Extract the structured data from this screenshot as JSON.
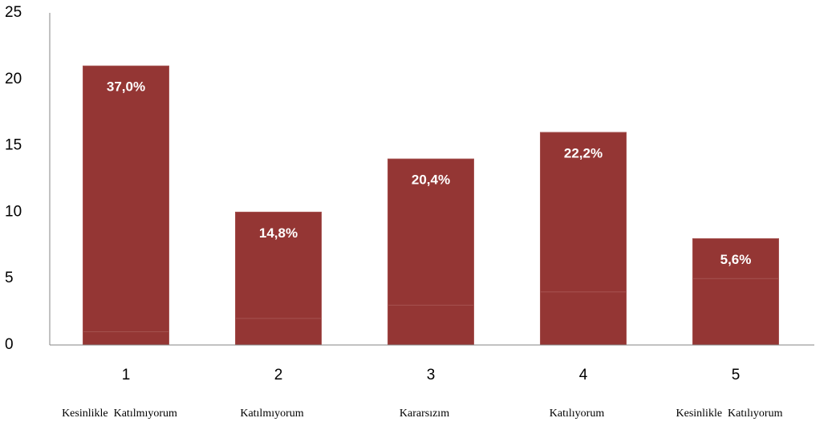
{
  "chart_data": {
    "type": "bar",
    "stacked": true,
    "categories": [
      "1",
      "2",
      "3",
      "4",
      "5"
    ],
    "category_descriptions": [
      "Kesinlikle  Katılmıyorum",
      "Katılmıyorum",
      "Kararsızım",
      "Katılıyorum",
      "Kesinlikle  Katılıyorum"
    ],
    "series": [
      {
        "color": "#943634",
        "values": [
          1,
          2,
          3,
          4,
          5
        ]
      },
      {
        "color": "#943634",
        "values": [
          20,
          8,
          11,
          12,
          3
        ]
      }
    ],
    "annotations": [
      "37,0%",
      "14,8%",
      "20,4%",
      "22,2%",
      "5,6%"
    ],
    "ylim": [
      0,
      25
    ],
    "yticks": [
      0,
      5,
      10,
      15,
      20,
      25
    ],
    "grid": false
  }
}
